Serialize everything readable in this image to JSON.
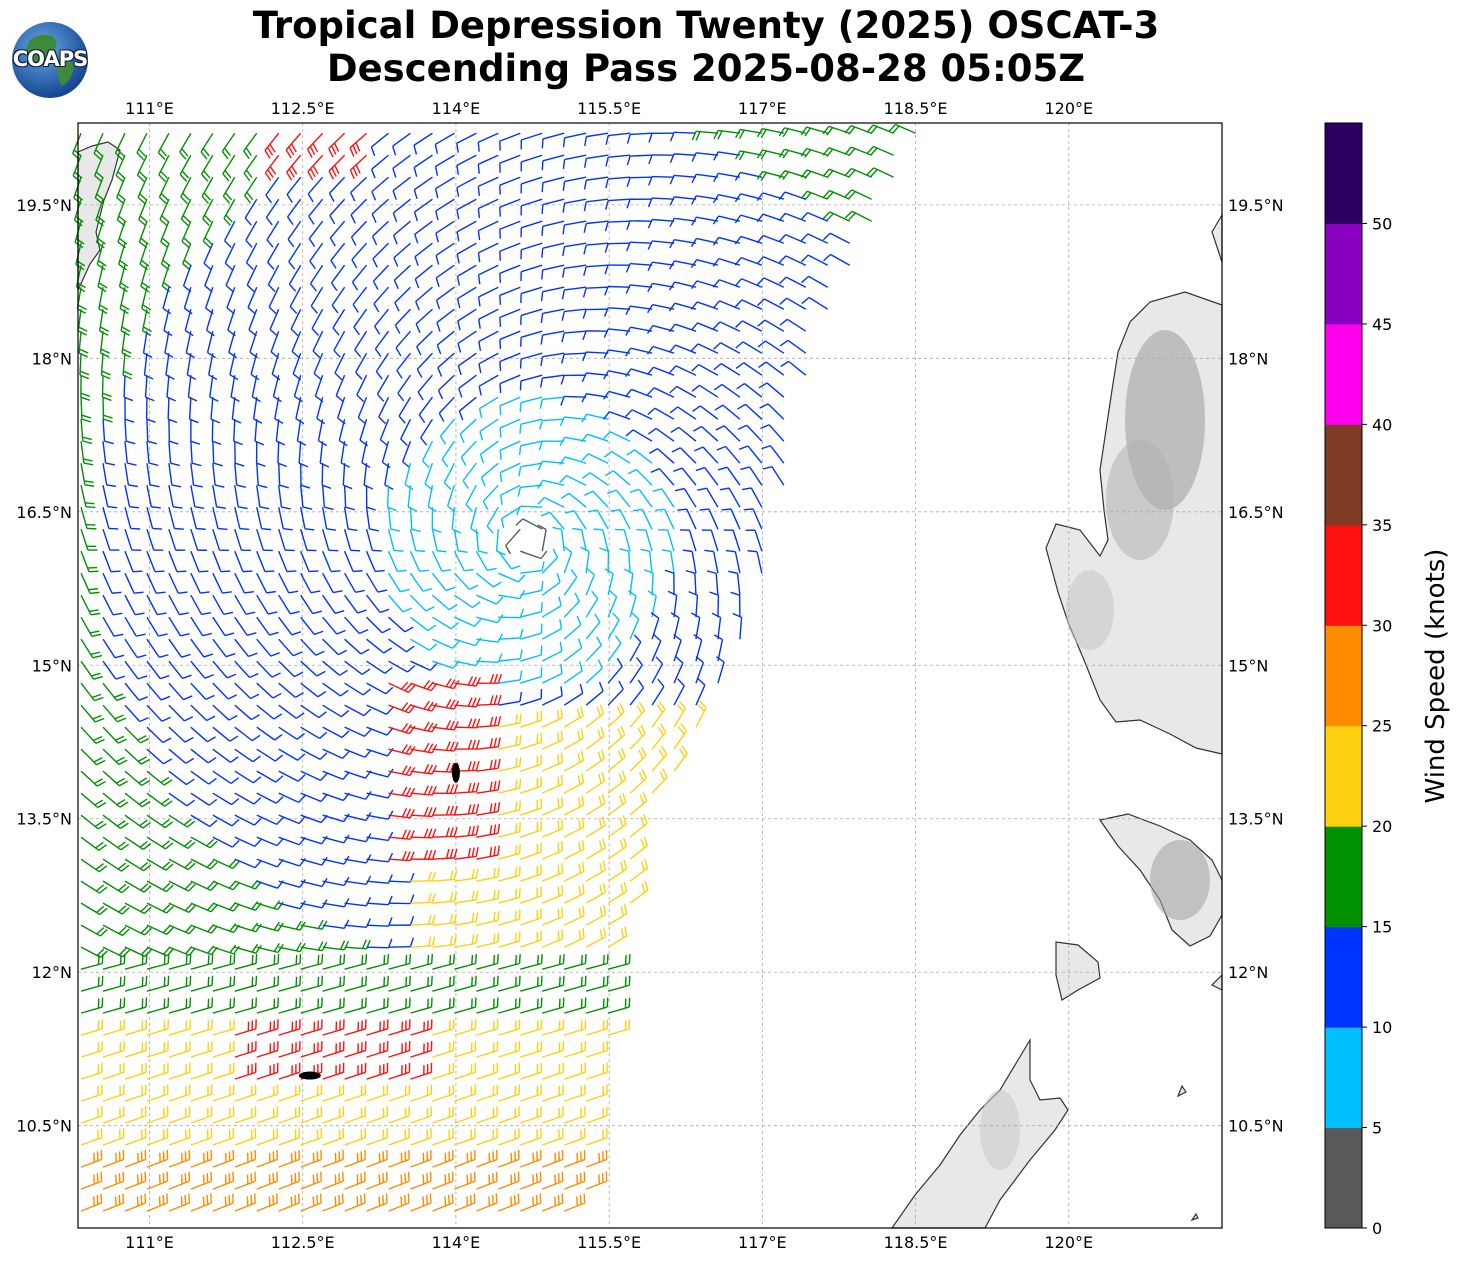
{
  "title_line1": "Tropical Depression Twenty (2025) OSCAT-3",
  "title_line2": "Descending Pass 2025-08-28 05:05Z",
  "logo": {
    "text": "COAPS",
    "icon": "globe-icon"
  },
  "map": {
    "lon_ticks": [
      {
        "label": "111°E",
        "value": 111.0
      },
      {
        "label": "112.5°E",
        "value": 112.5
      },
      {
        "label": "114°E",
        "value": 114.0
      },
      {
        "label": "115.5°E",
        "value": 115.5
      },
      {
        "label": "117°E",
        "value": 117.0
      },
      {
        "label": "118.5°E",
        "value": 118.5
      },
      {
        "label": "120°E",
        "value": 120.0
      }
    ],
    "lat_ticks": [
      {
        "label": "19.5°N",
        "value": 19.5
      },
      {
        "label": "18°N",
        "value": 18.0
      },
      {
        "label": "16.5°N",
        "value": 16.5
      },
      {
        "label": "15°N",
        "value": 15.0
      },
      {
        "label": "13.5°N",
        "value": 13.5
      },
      {
        "label": "12°N",
        "value": 12.0
      },
      {
        "label": "10.5°N",
        "value": 10.5
      }
    ],
    "lon_range": [
      110.3,
      121.5
    ],
    "lat_range": [
      9.5,
      20.3
    ],
    "grid": true,
    "storm_center": {
      "lon": 114.0,
      "lat": 13.95
    }
  },
  "colorbar": {
    "label": "Wind Speed (knots)",
    "ticks": [
      "0",
      "5",
      "10",
      "15",
      "20",
      "25",
      "30",
      "35",
      "40",
      "45",
      "50"
    ],
    "min": 0,
    "max": 55,
    "colors": [
      "#595959",
      "#00bfff",
      "#0033ff",
      "#009000",
      "#ffd010",
      "#ff8c00",
      "#ff1010",
      "#7f3b26",
      "#ff00ee",
      "#8a00c0",
      "#2a0060"
    ]
  }
}
